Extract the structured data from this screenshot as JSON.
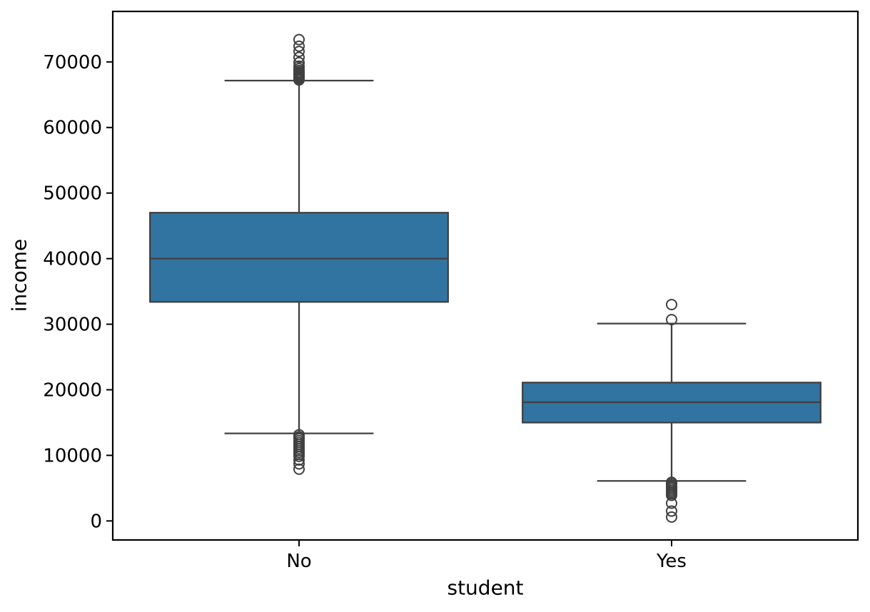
{
  "chart_data": {
    "type": "boxplot",
    "title": "",
    "xlabel": "student",
    "ylabel": "income",
    "categories": [
      "No",
      "Yes"
    ],
    "ylim": [
      -2900,
      77700
    ],
    "yticks": [
      0,
      10000,
      20000,
      30000,
      40000,
      50000,
      60000,
      70000
    ],
    "grid": false,
    "legend": "none",
    "colors": {
      "box_fill": "#3274a1",
      "box_line": "#404040",
      "spine": "#000000",
      "text": "#000000"
    },
    "series": [
      {
        "category": "No",
        "whisker_low": 13350,
        "q1": 33400,
        "median": 40000,
        "q3": 47000,
        "whisker_high": 67150,
        "outliers_high": [
          67250,
          67400,
          67550,
          67700,
          67850,
          68050,
          68250,
          68450,
          68700,
          69000,
          69350,
          69900,
          70700,
          71600,
          72400,
          73400
        ],
        "outliers_low": [
          13150,
          12850,
          12550,
          12250,
          11950,
          11650,
          11350,
          11050,
          10750,
          10450,
          10150,
          9850,
          9300,
          8700,
          7900
        ]
      },
      {
        "category": "Yes",
        "whisker_low": 6100,
        "q1": 15000,
        "median": 18100,
        "q3": 21100,
        "whisker_high": 30100,
        "outliers_high": [
          30700,
          33000
        ],
        "outliers_low": [
          5900,
          5650,
          5400,
          5150,
          4900,
          4650,
          4400,
          4150,
          3900,
          2700,
          1500,
          600
        ]
      }
    ]
  }
}
